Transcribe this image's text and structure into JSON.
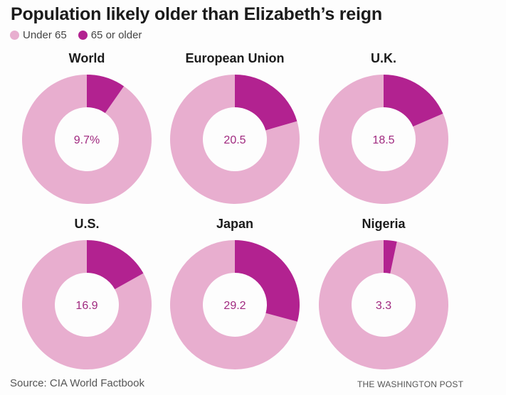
{
  "colors": {
    "under_65": "#e8aecf",
    "over_65": "#b22290",
    "label_text": "#a0297f"
  },
  "chart_data": {
    "type": "pie",
    "title": "Population likely older than Elizabeth’s reign",
    "legend": {
      "placement": "top-left",
      "entries": [
        "Under 65",
        "65 or older"
      ]
    },
    "series_names": [
      "Under 65",
      "65 or older"
    ],
    "panels": [
      {
        "name": "World",
        "over_65": 9.7,
        "under_65": 90.3,
        "label": "9.7%"
      },
      {
        "name": "European Union",
        "over_65": 20.5,
        "under_65": 79.5,
        "label": "20.5"
      },
      {
        "name": "U.K.",
        "over_65": 18.5,
        "under_65": 81.5,
        "label": "18.5"
      },
      {
        "name": "U.S.",
        "over_65": 16.9,
        "under_65": 83.1,
        "label": "16.9"
      },
      {
        "name": "Japan",
        "over_65": 29.2,
        "under_65": 70.8,
        "label": "29.2"
      },
      {
        "name": "Nigeria",
        "over_65": 3.3,
        "under_65": 96.7,
        "label": "3.3"
      }
    ],
    "units": "percent of population"
  },
  "footer": {
    "source": "Source: CIA World Factbook",
    "credit": "THE WASHINGTON POST"
  }
}
